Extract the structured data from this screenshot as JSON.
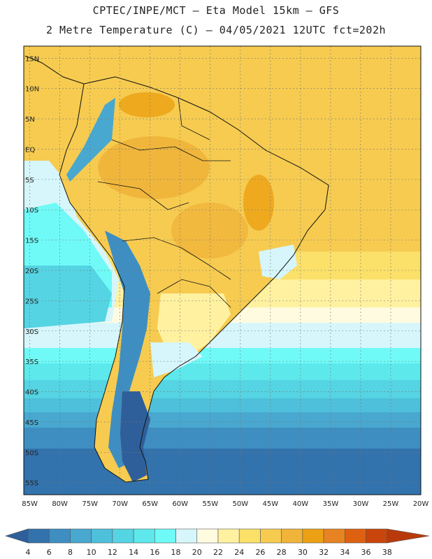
{
  "header": {
    "line1": "CPTEC/INPE/MCT –  Eta Model 15km – GFS",
    "line2": "2 Metre Temperature (C) – 04/05/2021 12UTC fct=202h"
  },
  "map": {
    "lon_ticks": [
      "85W",
      "80W",
      "75W",
      "70W",
      "65W",
      "60W",
      "55W",
      "50W",
      "45W",
      "40W",
      "35W",
      "30W",
      "25W",
      "20W"
    ],
    "lat_ticks": [
      "15N",
      "10N",
      "5N",
      "EQ",
      "5S",
      "10S",
      "15S",
      "20S",
      "25S",
      "30S",
      "35S",
      "40S",
      "45S",
      "50S",
      "55S"
    ],
    "lon_range": [
      -86,
      -20
    ],
    "lat_range": [
      -57,
      17
    ],
    "grid": true
  },
  "colorbar": {
    "labels": [
      "4",
      "6",
      "8",
      "10",
      "12",
      "14",
      "16",
      "18",
      "20",
      "22",
      "24",
      "26",
      "28",
      "30",
      "32",
      "34",
      "36",
      "38"
    ],
    "colors": [
      "#2f5f9a",
      "#3272ad",
      "#3e8ec2",
      "#48a8d0",
      "#4ec0db",
      "#55d4e3",
      "#5de9ec",
      "#6ffaf7",
      "#d6f6fb",
      "#fffbe0",
      "#fff1a0",
      "#fbe06a",
      "#f6cb50",
      "#f0b43a",
      "#eca013",
      "#e88321",
      "#de6111",
      "#c9450b",
      "#b83a0a"
    ]
  }
}
